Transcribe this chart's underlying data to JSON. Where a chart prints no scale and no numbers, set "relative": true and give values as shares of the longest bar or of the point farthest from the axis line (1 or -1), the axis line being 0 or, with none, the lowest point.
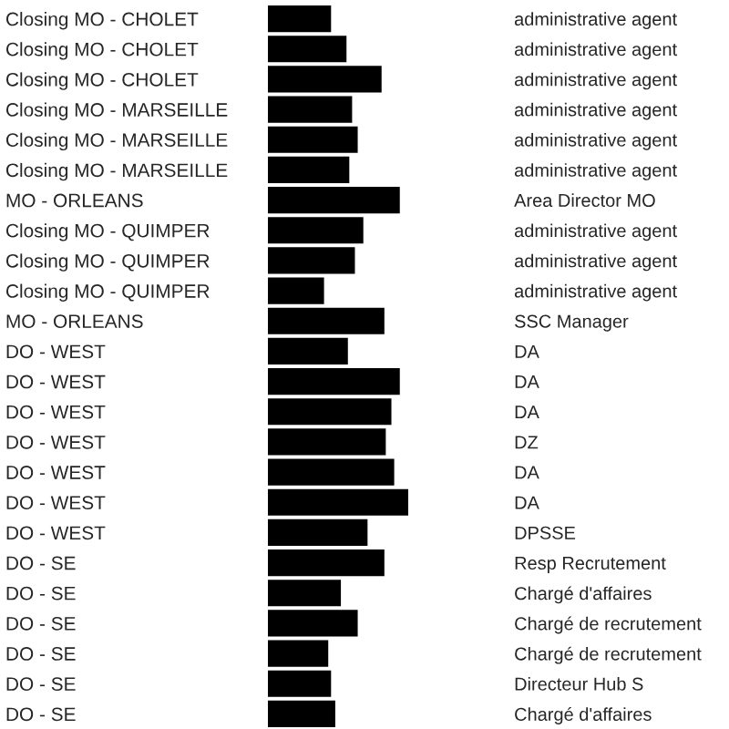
{
  "chart_data": {
    "type": "bar",
    "orientation": "horizontal",
    "relative": true,
    "color": "#000000",
    "grid": false,
    "legend": false,
    "categories": [
      "Closing MO - CHOLET",
      "Closing MO - CHOLET",
      "Closing MO - CHOLET",
      "Closing MO - MARSEILLE",
      "Closing MO - MARSEILLE",
      "Closing MO - MARSEILLE",
      "MO - ORLEANS",
      "Closing MO - QUIMPER",
      "Closing MO - QUIMPER",
      "Closing MO - QUIMPER",
      "MO - ORLEANS",
      "DO - WEST",
      "DO - WEST",
      "DO - WEST",
      "DO - WEST",
      "DO - WEST",
      "DO - WEST",
      "DO - WEST",
      "DO - SE",
      "DO - SE",
      "DO - SE",
      "DO - SE",
      "DO - SE",
      "DO - SE"
    ],
    "y2_categories": [
      "administrative agent",
      "administrative agent",
      "administrative agent",
      "administrative agent",
      "administrative agent",
      "administrative agent",
      "Area Director MO",
      "administrative agent",
      "administrative agent",
      "administrative agent",
      "SSC Manager",
      "DA",
      "DA",
      "DA",
      "DZ",
      "DA",
      "DA",
      "DPSSE",
      "Resp Recrutement",
      "Chargé d'affaires",
      "Chargé de recrutement",
      "Chargé de recrutement",
      "Directeur Hub S",
      "Chargé d'affaires"
    ],
    "values": [
      0.45,
      0.56,
      0.81,
      0.6,
      0.64,
      0.58,
      0.94,
      0.68,
      0.62,
      0.4,
      0.83,
      0.57,
      0.94,
      0.88,
      0.84,
      0.9,
      1,
      0.71,
      0.83,
      0.52,
      0.64,
      0.43,
      0.45,
      0.48
    ]
  }
}
